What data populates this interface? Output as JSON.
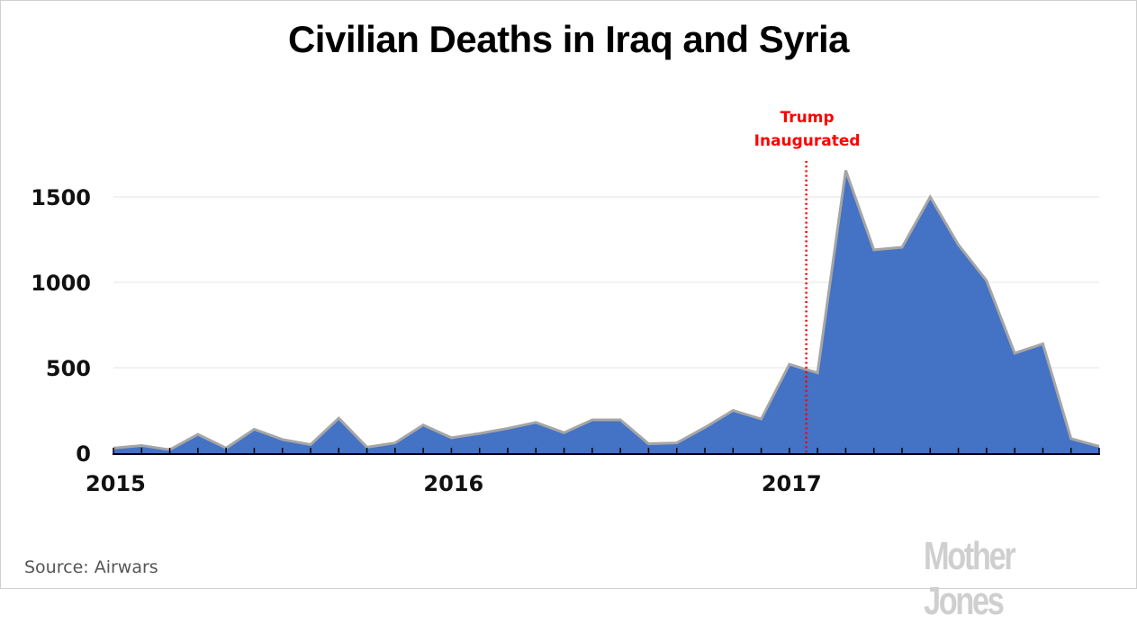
{
  "chart_data": {
    "type": "area",
    "title": "Civilian Deaths in Iraq and Syria",
    "xlabel": "",
    "ylabel": "",
    "x": [
      "2015-01",
      "2015-02",
      "2015-03",
      "2015-04",
      "2015-05",
      "2015-06",
      "2015-07",
      "2015-08",
      "2015-09",
      "2015-10",
      "2015-11",
      "2015-12",
      "2016-01",
      "2016-02",
      "2016-03",
      "2016-04",
      "2016-05",
      "2016-06",
      "2016-07",
      "2016-08",
      "2016-09",
      "2016-10",
      "2016-11",
      "2016-12",
      "2017-01",
      "2017-02",
      "2017-03",
      "2017-04",
      "2017-05",
      "2017-06",
      "2017-07",
      "2017-08",
      "2017-09",
      "2017-10",
      "2017-11",
      "2017-12"
    ],
    "series": [
      {
        "name": "Civilian deaths",
        "values": [
          30,
          45,
          20,
          110,
          30,
          140,
          80,
          50,
          205,
          35,
          60,
          165,
          90,
          115,
          145,
          180,
          120,
          195,
          195,
          55,
          60,
          150,
          250,
          200,
          520,
          470,
          1655,
          1190,
          1205,
          1500,
          1220,
          1010,
          585,
          640,
          85,
          40
        ],
        "fill_color": "#4472c4",
        "line_color": "#a6a6a6"
      }
    ],
    "ylim": [
      0,
      1750
    ],
    "yticks": [
      0,
      500,
      1000,
      1500
    ],
    "ytick_labels": [
      "0",
      "500",
      "1000",
      "1500"
    ],
    "xtick_labels": [
      {
        "label": "2015",
        "index": 0
      },
      {
        "label": "2016",
        "index": 12
      },
      {
        "label": "2017",
        "index": 24
      }
    ],
    "grid": "horizontal",
    "annotations": [
      {
        "type": "vline",
        "at_index": 24.6,
        "color": "#ff0000",
        "style": "dotted",
        "label_lines": [
          "Trump",
          "Inaugurated"
        ]
      }
    ]
  },
  "footer": {
    "source": "Source: Airwars",
    "brand": "Mother Jones"
  }
}
